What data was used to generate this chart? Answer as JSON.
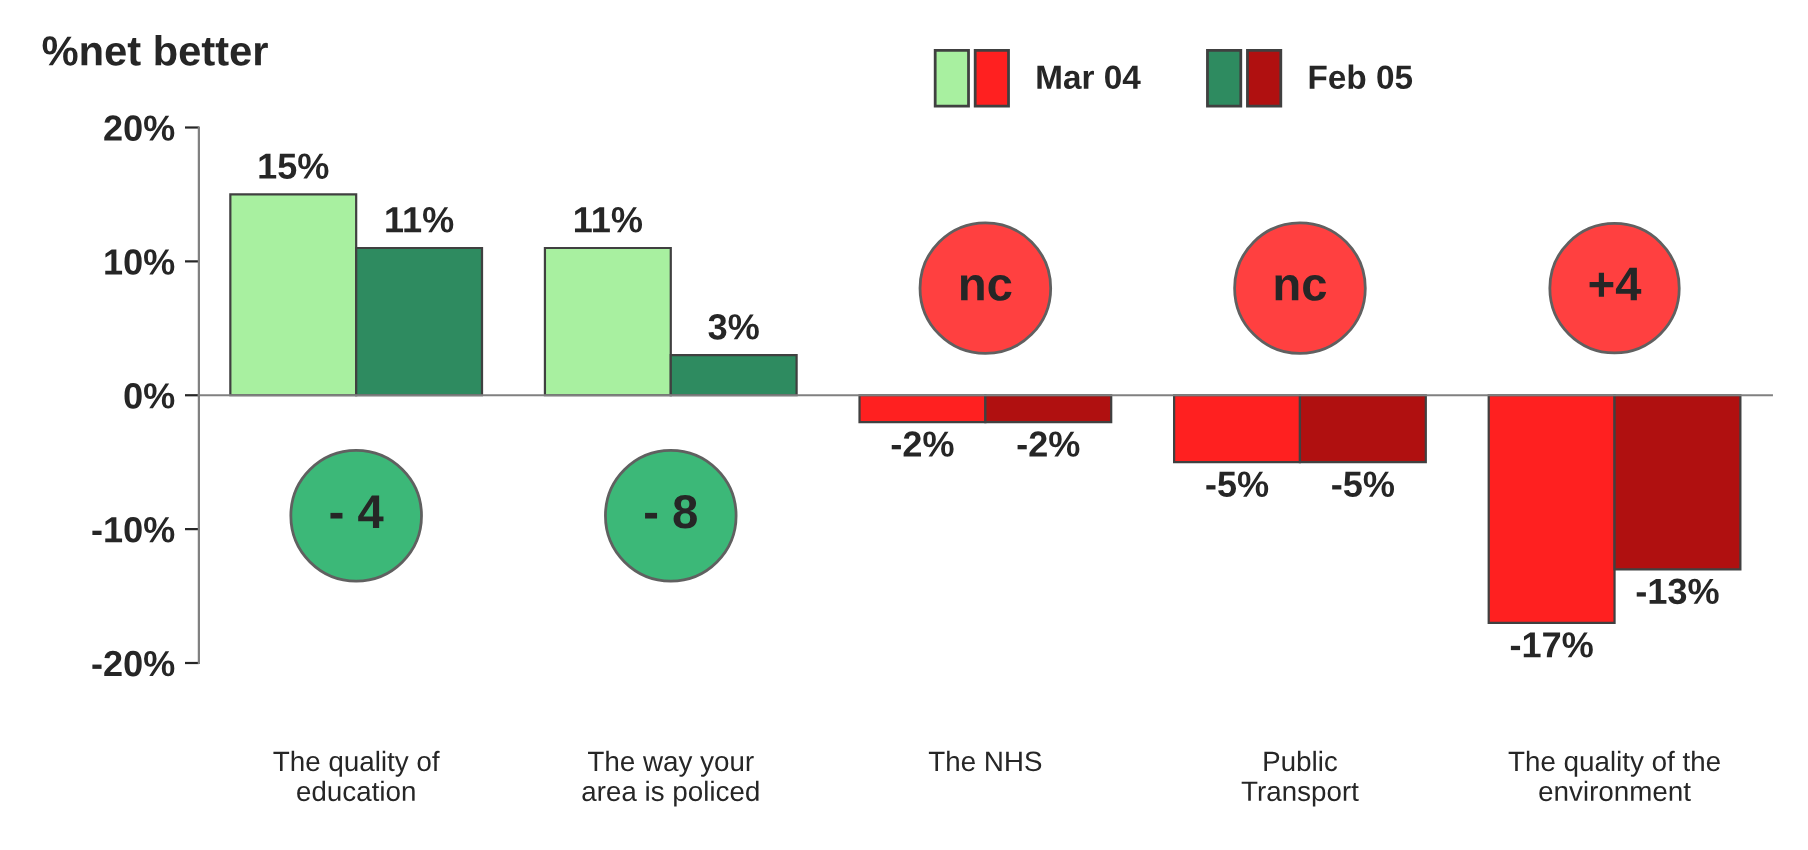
{
  "chart_data": {
    "type": "bar",
    "ylabel": "%net better",
    "categories": [
      "The quality of\neducation",
      "The way your\narea is policed",
      "The NHS",
      "Public\nTransport",
      "The quality of the\nenvironment"
    ],
    "series": [
      {
        "name": "Mar 04",
        "colors": [
          "#a8f0a0",
          "#a8f0a0",
          "#ff2020",
          "#ff2020",
          "#ff2020"
        ],
        "values": [
          15,
          11,
          -2,
          -5,
          -17
        ],
        "value_labels": [
          "15%",
          "11%",
          "-2%",
          "-5%",
          "-17%"
        ]
      },
      {
        "name": "Feb 05",
        "colors": [
          "#2e8b60",
          "#2e8b60",
          "#b01010",
          "#b01010",
          "#b01010"
        ],
        "values": [
          11,
          3,
          -2,
          -5,
          -13
        ],
        "value_labels": [
          "11%",
          "3%",
          "-2%",
          "-5%",
          "-13%"
        ]
      }
    ],
    "ylim": [
      -20,
      20
    ],
    "yticks": [
      {
        "value": -20,
        "label": "-20%"
      },
      {
        "value": -10,
        "label": "-10%"
      },
      {
        "value": 0,
        "label": "0%"
      },
      {
        "value": 10,
        "label": "10%"
      },
      {
        "value": 20,
        "label": "20%"
      }
    ],
    "annotations": [
      "- 4",
      "- 8",
      "nc",
      "nc",
      "+4"
    ],
    "legend": "top"
  }
}
